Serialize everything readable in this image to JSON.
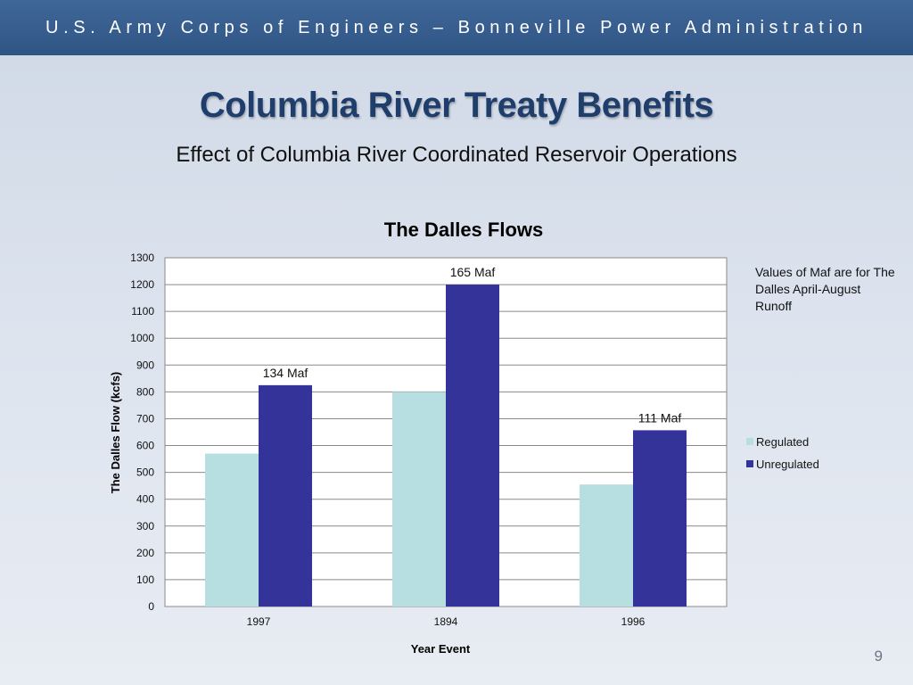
{
  "header": {
    "banner": "U.S. Army Corps of Engineers – Bonneville Power Administration",
    "title": "Columbia River Treaty Benefits",
    "subtitle": "Effect of Columbia River Coordinated Reservoir Operations"
  },
  "note": "Values of Maf are for The Dalles April-August Runoff",
  "page_number": "9",
  "colors": {
    "regulated": "#b7dfe2",
    "unregulated": "#333399",
    "banner": "#34598a"
  },
  "chart_data": {
    "type": "bar",
    "title": "The Dalles Flows",
    "xlabel": "Year Event",
    "ylabel": "The Dalles Flow (kcfs)",
    "categories": [
      "1997",
      "1894",
      "1996"
    ],
    "series": [
      {
        "name": "Regulated",
        "values": [
          570,
          800,
          455
        ]
      },
      {
        "name": "Unregulated",
        "values": [
          825,
          1200,
          657
        ]
      }
    ],
    "data_labels": [
      "134 Maf",
      "165 Maf",
      "111 Maf"
    ],
    "ylim": [
      0,
      1300
    ],
    "yticks": [
      0,
      100,
      200,
      300,
      400,
      500,
      600,
      700,
      800,
      900,
      1000,
      1100,
      1200,
      1300
    ],
    "grid": true,
    "legend_position": "right"
  }
}
